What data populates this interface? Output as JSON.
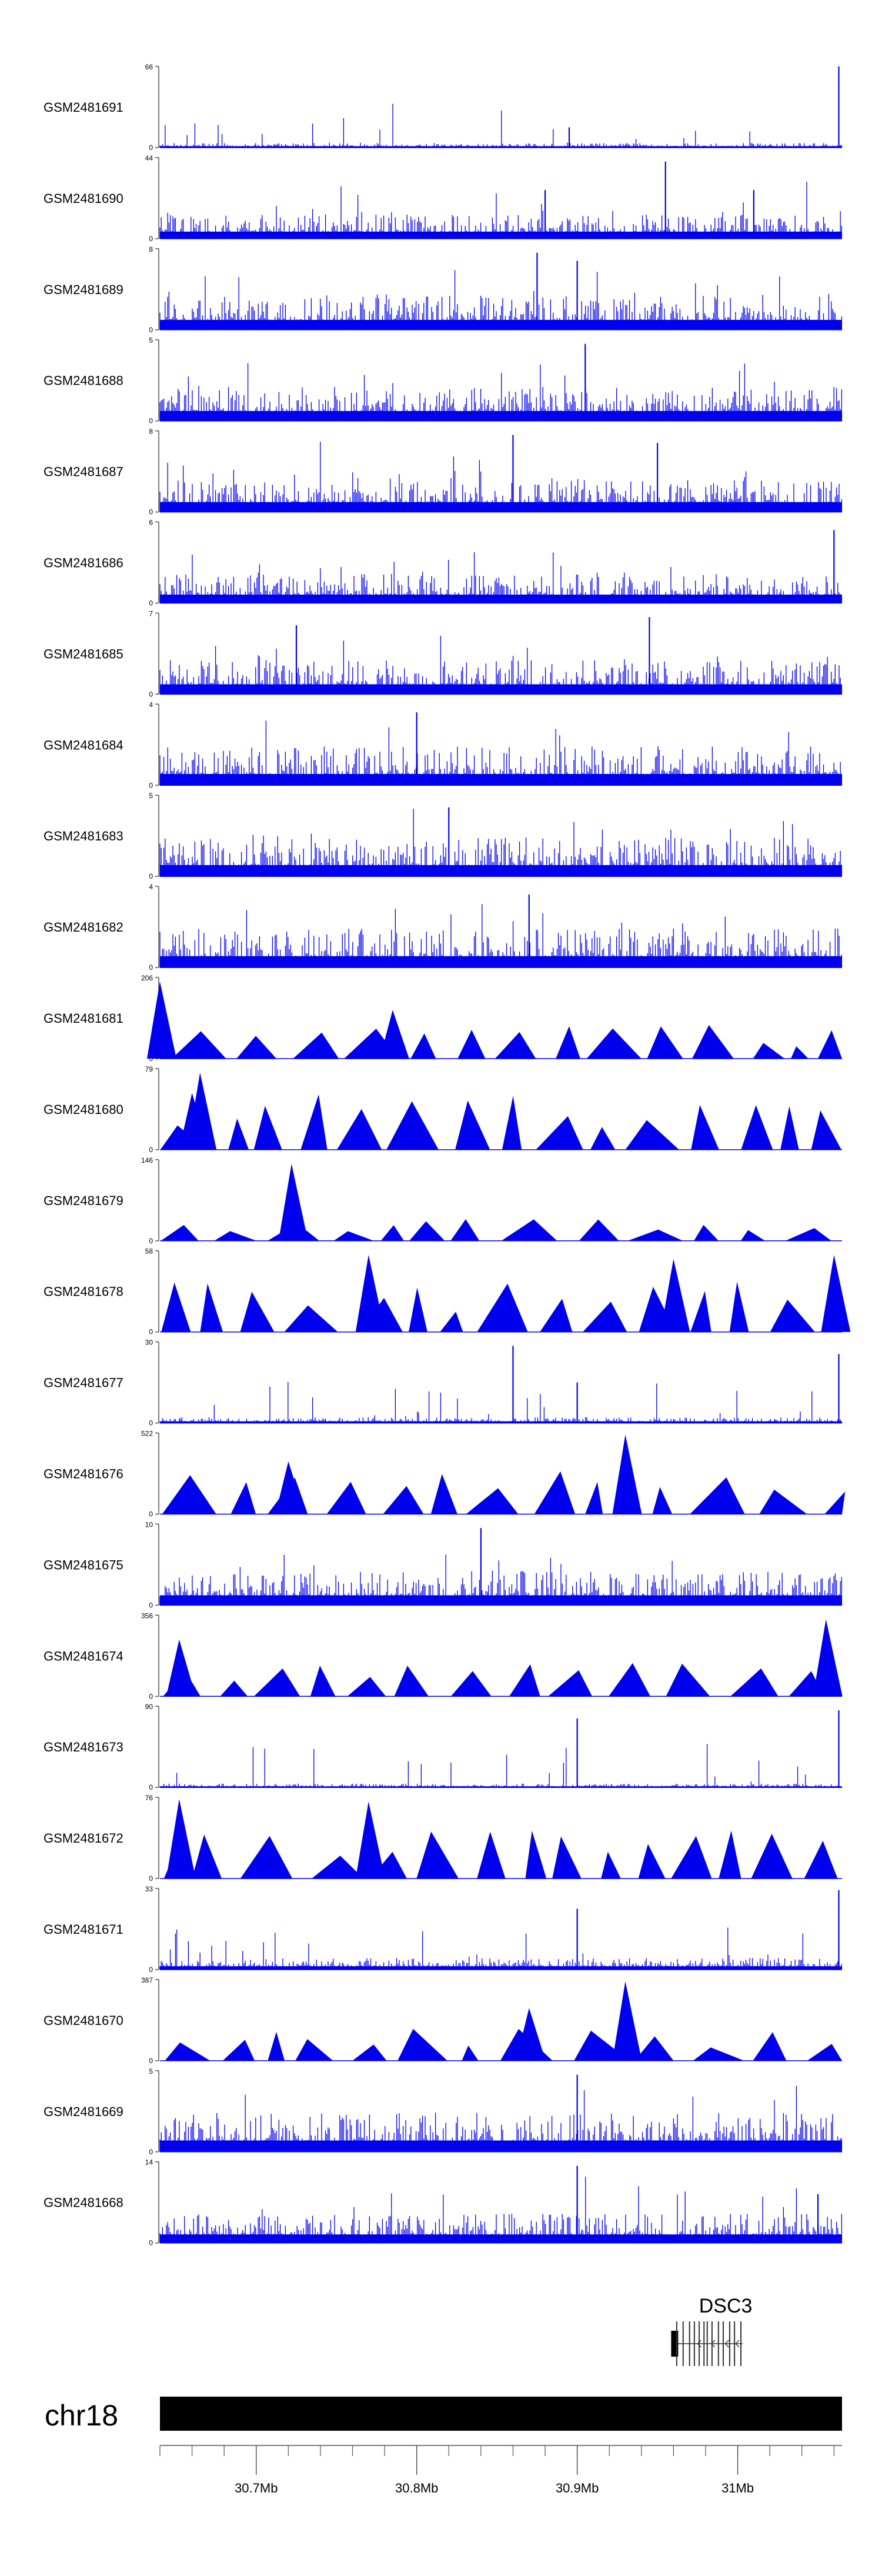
{
  "chart_data": {
    "type": "area",
    "title": "",
    "xlabel": "",
    "ylabel": "",
    "region": {
      "chromosome": "chr18",
      "start_mb": 30.64,
      "end_mb": 31.065
    },
    "x_ticks": [
      "30.7Mb",
      "30.8Mb",
      "30.9Mb",
      "31Mb"
    ],
    "x_tick_values": [
      30.7,
      30.8,
      30.9,
      31.0
    ],
    "minor_tick_step_mb": 0.02,
    "tracks": [
      {
        "name": "GSM2481691",
        "ymax_label": "66",
        "ymin_label": "0",
        "ymax": 66,
        "style": "dense",
        "level": 0.05,
        "spikes": [
          [
            30.895,
            0.25
          ],
          [
            31.063,
            1.0
          ]
        ]
      },
      {
        "name": "GSM2481690",
        "ymax_label": "44",
        "ymin_label": "0",
        "ymax": 44,
        "style": "dense",
        "level": 0.25,
        "spikes": [
          [
            30.88,
            0.6
          ],
          [
            30.955,
            0.95
          ],
          [
            31.01,
            0.6
          ]
        ]
      },
      {
        "name": "GSM2481689",
        "ymax_label": "8",
        "ymin_label": "0",
        "ymax": 8,
        "style": "dense",
        "level": 0.35,
        "spikes": [
          [
            30.875,
            0.95
          ],
          [
            30.9,
            0.85
          ]
        ]
      },
      {
        "name": "GSM2481688",
        "ymax_label": "5",
        "ymin_label": "0",
        "ymax": 5,
        "style": "dense",
        "level": 0.35,
        "spikes": [
          [
            30.905,
            0.95
          ]
        ]
      },
      {
        "name": "GSM2481687",
        "ymax_label": "8",
        "ymin_label": "0",
        "ymax": 8,
        "style": "dense",
        "level": 0.35,
        "spikes": [
          [
            30.86,
            0.95
          ],
          [
            30.95,
            0.85
          ]
        ]
      },
      {
        "name": "GSM2481686",
        "ymax_label": "6",
        "ymin_label": "0",
        "ymax": 6,
        "style": "dense",
        "level": 0.3,
        "spikes": [
          [
            31.06,
            0.9
          ]
        ]
      },
      {
        "name": "GSM2481685",
        "ymax_label": "7",
        "ymin_label": "0",
        "ymax": 7,
        "style": "dense",
        "level": 0.35,
        "spikes": [
          [
            30.725,
            0.85
          ],
          [
            30.945,
            0.95
          ]
        ]
      },
      {
        "name": "GSM2481684",
        "ymax_label": "4",
        "ymin_label": "0",
        "ymax": 4,
        "style": "dense",
        "level": 0.4,
        "spikes": [
          [
            30.8,
            0.9
          ]
        ]
      },
      {
        "name": "GSM2481683",
        "ymax_label": "5",
        "ymin_label": "0",
        "ymax": 5,
        "style": "dense",
        "level": 0.4,
        "spikes": [
          [
            30.82,
            0.85
          ]
        ]
      },
      {
        "name": "GSM2481682",
        "ymax_label": "4",
        "ymin_label": "0",
        "ymax": 4,
        "style": "dense",
        "level": 0.4,
        "spikes": [
          [
            30.87,
            0.9
          ]
        ]
      },
      {
        "name": "GSM2481681",
        "ymax_label": "206",
        "ymin_label": "0",
        "ymax": 206,
        "style": "tri",
        "level": 0.3,
        "spikes": [
          [
            30.64,
            0.95
          ],
          [
            30.785,
            0.6
          ]
        ]
      },
      {
        "name": "GSM2481680",
        "ymax_label": "79",
        "ymin_label": "0",
        "ymax": 79,
        "style": "tri",
        "level": 0.5,
        "spikes": [
          [
            30.665,
            0.95
          ],
          [
            30.66,
            0.7
          ]
        ]
      },
      {
        "name": "GSM2481679",
        "ymax_label": "146",
        "ymin_label": "0",
        "ymax": 146,
        "style": "tri",
        "level": 0.2,
        "spikes": [
          [
            30.722,
            0.45
          ],
          [
            30.722,
            0.95
          ]
        ]
      },
      {
        "name": "GSM2481678",
        "ymax_label": "58",
        "ymin_label": "0",
        "ymax": 58,
        "style": "tri",
        "level": 0.45,
        "spikes": [
          [
            30.77,
            0.95
          ],
          [
            30.96,
            0.9
          ],
          [
            31.06,
            0.95
          ]
        ]
      },
      {
        "name": "GSM2481677",
        "ymax_label": "30",
        "ymin_label": "0",
        "ymax": 30,
        "style": "dense",
        "level": 0.06,
        "spikes": [
          [
            30.86,
            0.95
          ],
          [
            30.9,
            0.5
          ],
          [
            31.063,
            0.85
          ]
        ]
      },
      {
        "name": "GSM2481676",
        "ymax_label": "522",
        "ymin_label": "0",
        "ymax": 522,
        "style": "tri",
        "level": 0.4,
        "spikes": [
          [
            30.72,
            0.65
          ],
          [
            30.93,
            0.98
          ]
        ]
      },
      {
        "name": "GSM2481675",
        "ymax_label": "10",
        "ymin_label": "0",
        "ymax": 10,
        "style": "dense",
        "level": 0.35,
        "spikes": [
          [
            30.84,
            0.95
          ]
        ]
      },
      {
        "name": "GSM2481674",
        "ymax_label": "356",
        "ymin_label": "0",
        "ymax": 356,
        "style": "tri",
        "level": 0.3,
        "spikes": [
          [
            30.652,
            0.7
          ],
          [
            31.055,
            0.95
          ]
        ]
      },
      {
        "name": "GSM2481673",
        "ymax_label": "90",
        "ymin_label": "0",
        "ymax": 90,
        "style": "dense",
        "level": 0.04,
        "spikes": [
          [
            30.9,
            0.85
          ],
          [
            31.063,
            0.95
          ]
        ]
      },
      {
        "name": "GSM2481672",
        "ymax_label": "76",
        "ymin_label": "0",
        "ymax": 76,
        "style": "tri",
        "level": 0.45,
        "spikes": [
          [
            30.652,
            0.98
          ],
          [
            30.77,
            0.95
          ]
        ]
      },
      {
        "name": "GSM2481671",
        "ymax_label": "33",
        "ymin_label": "0",
        "ymax": 33,
        "style": "dense",
        "level": 0.12,
        "spikes": [
          [
            30.9,
            0.75
          ],
          [
            31.063,
            0.98
          ]
        ]
      },
      {
        "name": "GSM2481670",
        "ymax_label": "387",
        "ymin_label": "0",
        "ymax": 387,
        "style": "tri",
        "level": 0.3,
        "spikes": [
          [
            30.87,
            0.65
          ],
          [
            30.93,
            0.98
          ]
        ]
      },
      {
        "name": "GSM2481669",
        "ymax_label": "5",
        "ymin_label": "0",
        "ymax": 5,
        "style": "dense",
        "level": 0.4,
        "spikes": [
          [
            30.9,
            0.95
          ]
        ]
      },
      {
        "name": "GSM2481668",
        "ymax_label": "14",
        "ymin_label": "0",
        "ymax": 14,
        "style": "dense",
        "level": 0.3,
        "spikes": [
          [
            30.9,
            0.95
          ],
          [
            31.05,
            0.6
          ]
        ]
      }
    ],
    "gene": {
      "name": "DSC3",
      "strand": "-",
      "start_mb": 30.96,
      "end_mb": 31.003,
      "exon_positions_mb": [
        30.962,
        30.966,
        30.97,
        30.973,
        30.976,
        30.979,
        30.981,
        30.984,
        30.988,
        30.991,
        30.995,
        30.998,
        31.002
      ]
    },
    "colors": {
      "signal": "#0000ee",
      "axis": "#555555",
      "ideogram": "#000000",
      "text": "#000000",
      "gene": "#333333"
    }
  }
}
